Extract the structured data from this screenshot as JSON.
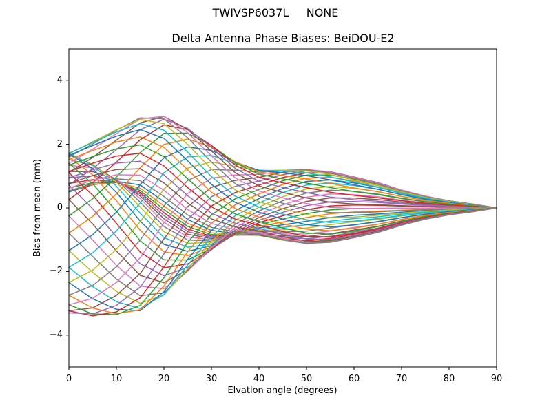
{
  "figure": {
    "suptitle": "TWIVSP6037L     NONE",
    "axes_title": "Delta Antenna Phase Biases: BeiDOU-E2"
  },
  "chart_data": {
    "type": "line",
    "suptitle": "TWIVSP6037L     NONE",
    "title": "Delta Antenna Phase Biases: BeiDOU-E2",
    "xlabel": "Elvation angle (degrees)",
    "ylabel": "Bias from mean (mm)",
    "xlim": [
      0,
      90
    ],
    "ylim": [
      -5,
      5
    ],
    "xticks": [
      0,
      10,
      20,
      30,
      40,
      50,
      60,
      70,
      80,
      90
    ],
    "xtick_labels": [
      "0",
      "10",
      "20",
      "30",
      "40",
      "50",
      "60",
      "70",
      "80",
      "90"
    ],
    "yticks": [
      4,
      2,
      0,
      -2,
      -4
    ],
    "ytick_labels": [
      "4",
      "2",
      "0",
      "−2",
      "−4"
    ],
    "grid": false,
    "legend": "none",
    "background_color": "#ffffff",
    "spine_color": "#000000",
    "tick_color": "#000000",
    "line_width": 1.5,
    "palette": [
      "#1f77b4",
      "#ff7f0e",
      "#2ca02c",
      "#d62728",
      "#9467bd",
      "#8c564b",
      "#e377c2",
      "#7f7f7f",
      "#bcbd22",
      "#17becf"
    ],
    "x": [
      0,
      5,
      10,
      15,
      20,
      25,
      30,
      35,
      40,
      45,
      50,
      55,
      60,
      65,
      70,
      75,
      80,
      85,
      90
    ],
    "num_curves": 48,
    "curve_model": {
      "description": "48 unlabeled bias curves, one per azimuth bin; curve k: y(x) = amp1(x)*cos(theta_k + phase1(x)) + amp2(x)*cos(2*theta_k + phase2(x)), with theta_k = k*theta_step_deg; color = palette[k mod 10]; all curves converge to 0 mm at 90 deg",
      "theta_step_deg": 7.5,
      "amp1": [
        1.9,
        2.1,
        2.3,
        2.5,
        2.4,
        2.0,
        1.55,
        1.15,
        1.0,
        1.08,
        1.15,
        1.1,
        0.95,
        0.78,
        0.55,
        0.36,
        0.22,
        0.12,
        0.0
      ],
      "amp2": [
        -1.4,
        -1.32,
        -1.18,
        -1.02,
        -0.84,
        -0.62,
        -0.44,
        -0.3,
        -0.2,
        -0.14,
        -0.1,
        -0.08,
        -0.06,
        -0.04,
        -0.03,
        -0.02,
        -0.01,
        0.0,
        0.0
      ],
      "phase1_deg": [
        0,
        15,
        32,
        50,
        70,
        90,
        110,
        130,
        148,
        162,
        172,
        178,
        180,
        180,
        180,
        180,
        180,
        180,
        180
      ],
      "phase2_deg": [
        0,
        9,
        19,
        30,
        42,
        54,
        66,
        78,
        89,
        97,
        103,
        107,
        108,
        108,
        108,
        108,
        108,
        108,
        108
      ]
    },
    "envelope_read_from_plot": {
      "x": [
        0,
        5,
        10,
        15,
        20,
        25,
        30,
        35,
        40,
        45,
        50,
        55,
        60,
        65,
        70,
        75,
        80,
        85,
        90
      ],
      "upper": [
        1.5,
        1.9,
        2.2,
        2.4,
        2.35,
        1.9,
        1.35,
        0.9,
        0.95,
        1.1,
        1.2,
        1.15,
        0.95,
        0.75,
        0.55,
        0.35,
        0.2,
        0.1,
        0.0
      ],
      "lower": [
        -3.3,
        -3.25,
        -3.05,
        -2.85,
        -2.6,
        -2.3,
        -1.85,
        -1.4,
        -1.2,
        -1.2,
        -1.25,
        -1.2,
        -1.0,
        -0.8,
        -0.55,
        -0.35,
        -0.2,
        -0.1,
        0.0
      ]
    }
  }
}
